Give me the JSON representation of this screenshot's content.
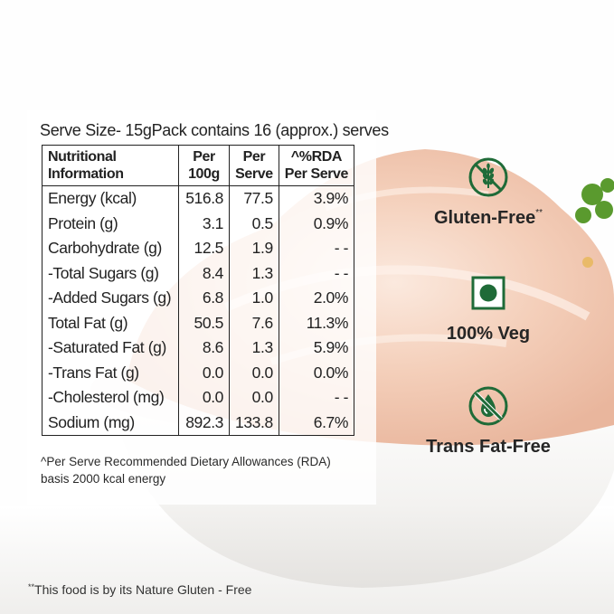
{
  "serve_line": {
    "serve_size": "Serve Size- 15g",
    "pack": "Pack contains 16 (approx.) serves"
  },
  "table": {
    "headers": {
      "col1_l1": "Nutritional",
      "col1_l2": "Information",
      "col2_l1": "Per",
      "col2_l2": "100g",
      "col3_l1": "Per",
      "col3_l2": "Serve",
      "col4_l1": "^%RDA",
      "col4_l2": "Per Serve"
    },
    "rows": [
      {
        "name": "Energy (kcal)",
        "per100": "516.8",
        "serve": "77.5",
        "rda": "3.9%"
      },
      {
        "name": "Protein (g)",
        "per100": "3.1",
        "serve": "0.5",
        "rda": "0.9%"
      },
      {
        "name": "Carbohydrate (g)",
        "per100": "12.5",
        "serve": "1.9",
        "rda": "- -"
      },
      {
        "name": "-Total Sugars (g)",
        "per100": "8.4",
        "serve": "1.3",
        "rda": "- -"
      },
      {
        "name": "-Added Sugars (g)",
        "per100": "6.8",
        "serve": "1.0",
        "rda": "2.0%"
      },
      {
        "name": "Total Fat (g)",
        "per100": "50.5",
        "serve": "7.6",
        "rda": "11.3%"
      },
      {
        "name": "-Saturated Fat (g)",
        "per100": "8.6",
        "serve": "1.3",
        "rda": "5.9%"
      },
      {
        "name": "-Trans Fat (g)",
        "per100": "0.0",
        "serve": "0.0",
        "rda": "0.0%"
      },
      {
        "name": "-Cholesterol (mg)",
        "per100": "0.0",
        "serve": "0.0",
        "rda": "- -"
      },
      {
        "name": "Sodium (mg)",
        "per100": "892.3",
        "serve": "133.8",
        "rda": "6.7%"
      }
    ]
  },
  "rda_note": "^Per Serve Recommended Dietary Allowances (RDA) basis 2000 kcal energy",
  "footnote": {
    "mark": "**",
    "text": "This food is by its Nature Gluten - Free"
  },
  "features": [
    {
      "label": "Gluten-Free",
      "mark": "**",
      "icon": "no-wheat-icon"
    },
    {
      "label": "100% Veg",
      "mark": "",
      "icon": "veg-mark-icon"
    },
    {
      "label": "Trans Fat-Free",
      "mark": "",
      "icon": "no-oil-drop-icon"
    }
  ],
  "colors": {
    "icon_green": "#1f6b38",
    "cream": "#f2c9b2",
    "bowl": "#f4f3f1"
  }
}
